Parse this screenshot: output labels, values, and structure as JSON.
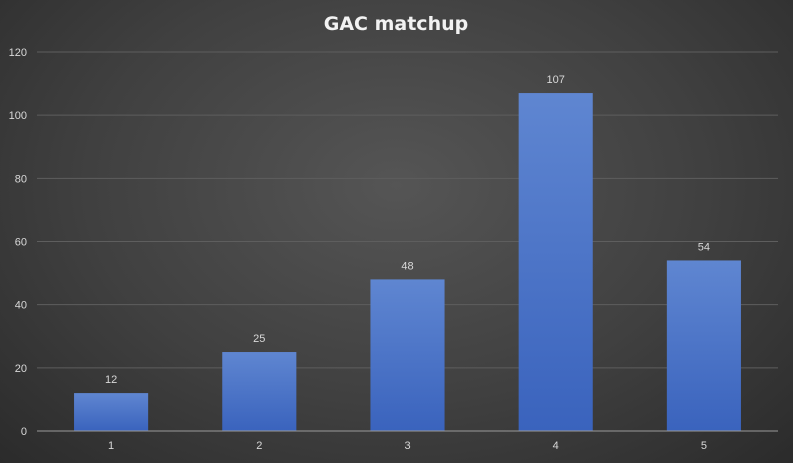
{
  "chart_data": {
    "type": "bar",
    "title": "GAC matchup",
    "categories": [
      "1",
      "2",
      "3",
      "4",
      "5"
    ],
    "values": [
      12,
      25,
      48,
      107,
      54
    ],
    "ylim": [
      0,
      120
    ],
    "yticks": [
      0,
      20,
      40,
      60,
      80,
      100,
      120
    ],
    "xlabel": "",
    "ylabel": "",
    "grid": true,
    "legend": "none",
    "data_labels": true,
    "colors": {
      "bar_top": "#5f86d1",
      "bar_bottom": "#3a63bd",
      "background": "#404040",
      "text": "#d9d9d9"
    }
  }
}
